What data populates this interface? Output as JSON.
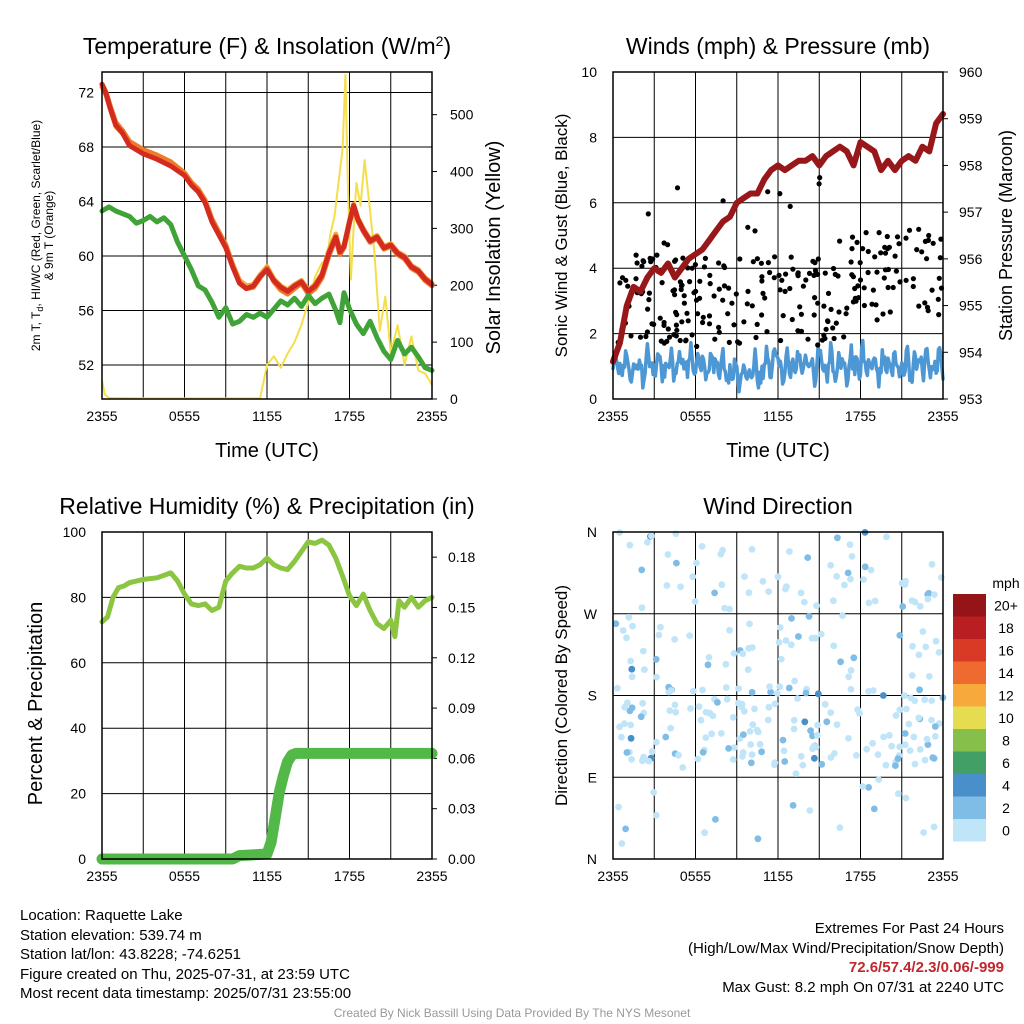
{
  "palette": {
    "temp": "#d42b20",
    "heat_index": "#f3a63a",
    "wind_chill": "#3f82c5",
    "temp_9m": "#ee7a2a",
    "dewpoint": "#3fa337",
    "solar": "#f5de4b",
    "gust": "#000000",
    "sonic_wind": "#4d98d4",
    "pressure": "#98171b",
    "rh": "#8bc542",
    "precip": "#52b848"
  },
  "chart_data": [
    {
      "id": "temp",
      "type": "line",
      "title": "Temperature (F) & Insolation (W/m²)",
      "xlabel": "Time (UTC)",
      "ylabel": "2m T, Td, HI/WC (Red, Green, Scarlet/Blue) & 9m T (Orange)",
      "y2label": "Solar Insolation (Yellow)",
      "x_ticks": [
        "2355",
        "0555",
        "1155",
        "1755",
        "2355"
      ],
      "xlim": [
        0,
        24
      ],
      "ylim": [
        49.5,
        73.5
      ],
      "y_ticks": [
        52,
        56,
        60,
        64,
        68,
        72
      ],
      "y2lim": [
        0,
        575
      ],
      "y2_ticks": [
        0,
        100,
        200,
        300,
        400,
        500
      ],
      "grid": true,
      "series": [
        {
          "key": "solar",
          "axis": "y2",
          "x": [
            0,
            0.2,
            0.5,
            3,
            8,
            11.5,
            12.0,
            12.5,
            13.0,
            13.5,
            14.0,
            14.5,
            15.0,
            15.5,
            16.0,
            16.3,
            16.6,
            16.9,
            17.2,
            17.5,
            17.7,
            17.9,
            18.1,
            18.3,
            18.5,
            18.8,
            19.1,
            19.5,
            19.8,
            20.2,
            20.6,
            21.0,
            21.5,
            22.0,
            22.5,
            23.0,
            23.5,
            24.0
          ],
          "y": [
            32,
            8,
            2,
            1,
            1,
            1,
            60,
            75,
            55,
            80,
            100,
            130,
            170,
            215,
            240,
            230,
            290,
            320,
            380,
            440,
            570,
            360,
            210,
            300,
            380,
            340,
            420,
            330,
            260,
            120,
            180,
            80,
            130,
            60,
            110,
            50,
            45,
            25
          ]
        },
        {
          "key": "heat_index",
          "axis": "y",
          "x": [
            0,
            0.3,
            0.6,
            1.0,
            1.5,
            2.0,
            3.0,
            4.0,
            5.0,
            6.0,
            6.5,
            7.0,
            7.5,
            8.0,
            9.0,
            9.5,
            10.0,
            10.5,
            11.0,
            11.5,
            12.0,
            12.5,
            13.0,
            13.5,
            14.0,
            14.5,
            15.0,
            15.5,
            16.0,
            16.5,
            17.0,
            17.3,
            17.6,
            18.0,
            18.3,
            18.6,
            19.0,
            19.5,
            20.0,
            20.5,
            21.0,
            21.5,
            22.0,
            22.5,
            23.0,
            23.5,
            24.0
          ],
          "y": [
            72.4,
            71.8,
            70.8,
            69.5,
            69.0,
            68.2,
            67.6,
            67.2,
            66.8,
            66.0,
            65.3,
            64.8,
            64.0,
            62.6,
            60.8,
            59.4,
            58.2,
            57.8,
            57.9,
            58.6,
            59.2,
            58.3,
            57.8,
            57.5,
            57.9,
            58.2,
            57.5,
            57.9,
            58.7,
            60.4,
            61.6,
            60.4,
            60.8,
            62.6,
            63.8,
            62.8,
            62.0,
            61.2,
            61.5,
            60.7,
            60.9,
            60.3,
            60.0,
            59.3,
            59.0,
            58.4,
            58.0
          ]
        },
        {
          "key": "temp_9m",
          "axis": "y",
          "x": [
            0,
            0.3,
            0.6,
            1.0,
            1.5,
            2.0,
            3.0,
            4.0,
            5.0,
            6.0,
            6.5,
            7.0,
            7.5,
            8.0,
            9.0,
            9.5,
            10.0,
            10.5,
            11.0,
            11.5,
            12.0,
            12.5,
            13.0,
            13.5,
            14.0,
            14.5,
            15.0,
            15.5,
            16.0,
            16.5,
            17.0,
            17.3,
            17.6,
            18.0,
            18.3,
            18.6,
            19.0,
            19.5,
            20.0,
            20.5,
            21.0,
            21.5,
            22.0,
            22.5,
            23.0,
            23.5,
            24.0
          ],
          "y": [
            72.6,
            72.0,
            71.0,
            69.8,
            69.2,
            68.4,
            67.8,
            67.4,
            66.9,
            66.1,
            65.4,
            64.9,
            64.1,
            62.7,
            60.8,
            59.3,
            58.0,
            57.6,
            57.7,
            58.4,
            59.1,
            58.1,
            57.5,
            57.2,
            57.6,
            58.0,
            57.2,
            57.6,
            58.4,
            60.0,
            61.3,
            60.1,
            60.6,
            62.4,
            63.6,
            62.6,
            61.8,
            61.0,
            61.3,
            60.5,
            60.7,
            60.1,
            59.8,
            59.1,
            58.8,
            58.2,
            57.8
          ]
        },
        {
          "key": "temp",
          "axis": "y",
          "x": [
            0,
            0.3,
            0.6,
            1.0,
            1.5,
            2.0,
            3.0,
            4.0,
            5.0,
            6.0,
            6.5,
            7.0,
            7.5,
            8.0,
            9.0,
            9.5,
            10.0,
            10.5,
            11.0,
            11.5,
            12.0,
            12.5,
            13.0,
            13.5,
            14.0,
            14.5,
            15.0,
            15.5,
            16.0,
            16.5,
            17.0,
            17.3,
            17.6,
            18.0,
            18.3,
            18.6,
            19.0,
            19.5,
            20.0,
            20.5,
            21.0,
            21.5,
            22.0,
            22.5,
            23.0,
            23.5,
            24.0
          ],
          "y": [
            72.6,
            71.9,
            70.8,
            69.6,
            69.0,
            68.1,
            67.5,
            67.1,
            66.6,
            65.9,
            65.2,
            64.7,
            63.9,
            62.5,
            60.6,
            59.2,
            58.0,
            57.6,
            57.8,
            58.5,
            59.0,
            58.2,
            57.7,
            57.4,
            57.8,
            58.1,
            57.4,
            57.8,
            58.6,
            60.2,
            61.4,
            60.3,
            60.7,
            62.5,
            63.7,
            62.7,
            61.9,
            61.1,
            61.4,
            60.6,
            60.8,
            60.2,
            59.9,
            59.2,
            58.9,
            58.3,
            57.9
          ]
        },
        {
          "key": "dewpoint",
          "axis": "y",
          "x": [
            0,
            0.5,
            1.0,
            1.5,
            2.0,
            2.5,
            3.0,
            3.5,
            4.0,
            4.5,
            5.0,
            5.5,
            6.0,
            6.5,
            7.0,
            7.5,
            8.0,
            8.5,
            9.0,
            9.5,
            10.0,
            10.5,
            11.0,
            11.5,
            12.0,
            12.5,
            13.0,
            13.5,
            14.0,
            14.5,
            15.0,
            15.5,
            16.0,
            16.5,
            17.0,
            17.3,
            17.6,
            18.0,
            18.5,
            19.0,
            19.5,
            20.0,
            20.5,
            21.0,
            21.5,
            22.0,
            22.5,
            23.0,
            23.5,
            24.0
          ],
          "y": [
            63.3,
            63.6,
            63.3,
            63.1,
            62.9,
            62.4,
            62.6,
            62.9,
            62.5,
            62.8,
            62.3,
            61.0,
            60.0,
            59.0,
            57.8,
            57.5,
            56.6,
            55.5,
            56.2,
            55.0,
            55.2,
            55.7,
            55.5,
            55.8,
            55.5,
            56.1,
            56.7,
            56.4,
            56.9,
            56.3,
            57.1,
            56.5,
            56.9,
            57.2,
            56.0,
            55.1,
            57.3,
            56.1,
            55.0,
            54.3,
            55.2,
            54.0,
            53.0,
            52.4,
            53.8,
            52.8,
            53.3,
            52.6,
            51.8,
            51.6
          ]
        }
      ]
    },
    {
      "id": "wind",
      "type": "line",
      "title": "Winds (mph) & Pressure (mb)",
      "xlabel": "Time (UTC)",
      "ylabel": "Sonic Wind & Gust (Blue, Black)",
      "y2label": "Station Pressure (Maroon)",
      "x_ticks": [
        "2355",
        "0555",
        "1155",
        "1755",
        "2355"
      ],
      "xlim": [
        0,
        24
      ],
      "ylim": [
        0,
        10
      ],
      "y_ticks": [
        0,
        2,
        4,
        6,
        8,
        10
      ],
      "y2lim": [
        953,
        960
      ],
      "y2_ticks": [
        953,
        954,
        955,
        956,
        957,
        958,
        959,
        960
      ],
      "grid": true,
      "series": [
        {
          "key": "pressure",
          "axis": "y2",
          "x": [
            0,
            0.5,
            1.0,
            1.5,
            2.0,
            2.5,
            3.0,
            3.5,
            4.0,
            4.5,
            5.0,
            5.5,
            6.0,
            6.5,
            7.0,
            7.5,
            8.0,
            8.5,
            9.0,
            9.5,
            10.0,
            10.5,
            11.0,
            11.5,
            12.0,
            12.5,
            13.0,
            13.5,
            14.0,
            14.5,
            15.0,
            15.5,
            16.0,
            16.5,
            17.0,
            17.5,
            18.0,
            18.5,
            19.0,
            19.5,
            20.0,
            20.5,
            21.0,
            21.5,
            22.0,
            22.5,
            23.0,
            23.5,
            24.0
          ],
          "y": [
            953.8,
            954.2,
            955.0,
            955.4,
            955.3,
            955.6,
            955.8,
            955.7,
            955.9,
            955.6,
            955.8,
            956.0,
            956.1,
            956.2,
            956.4,
            956.6,
            956.8,
            956.9,
            957.2,
            957.3,
            957.4,
            957.4,
            957.7,
            957.9,
            958.0,
            957.9,
            958.0,
            958.1,
            958.1,
            958.2,
            958.0,
            958.2,
            958.3,
            958.4,
            958.3,
            958.0,
            958.5,
            958.4,
            958.3,
            957.9,
            958.1,
            957.9,
            958.1,
            958.2,
            958.1,
            958.4,
            958.3,
            958.9,
            959.1
          ]
        },
        {
          "key": "sonic_wind",
          "axis": "y",
          "x": [],
          "y": []
        }
      ],
      "gust_points": {
        "x": [],
        "y": []
      }
    },
    {
      "id": "rh",
      "type": "line",
      "title": "Relative Humidity (%) & Precipitation (in)",
      "xlabel": "",
      "ylabel": "Percent & Precipitation",
      "x_ticks": [
        "2355",
        "0555",
        "1155",
        "1755",
        "2355"
      ],
      "xlim": [
        0,
        24
      ],
      "ylim": [
        0,
        100
      ],
      "y_ticks": [
        0,
        20,
        40,
        60,
        80,
        100
      ],
      "y2lim": [
        0,
        0.195
      ],
      "y2_ticks": [
        "0.00",
        "0.03",
        "0.06",
        "0.09",
        "0.12",
        "0.15",
        "0.18"
      ],
      "grid": true,
      "series": [
        {
          "key": "rh",
          "axis": "y",
          "x": [
            0,
            0.4,
            0.8,
            1.2,
            1.6,
            2.0,
            3.0,
            4.0,
            5.0,
            5.5,
            6.0,
            6.5,
            7.0,
            7.5,
            8.0,
            8.5,
            9.0,
            9.5,
            10.0,
            10.5,
            11.0,
            11.5,
            12.0,
            12.5,
            13.0,
            13.5,
            14.0,
            14.5,
            15.0,
            15.5,
            16.0,
            16.5,
            17.0,
            17.5,
            18.0,
            18.5,
            19.0,
            19.5,
            20.0,
            20.5,
            21.0,
            21.3,
            21.6,
            22.0,
            22.5,
            23.0,
            23.5,
            24.0
          ],
          "y": [
            72.5,
            74,
            80,
            83,
            83.5,
            84.5,
            85.5,
            86,
            87.5,
            85,
            81,
            78,
            77.5,
            78,
            76,
            77,
            85,
            87.5,
            89.5,
            89,
            89,
            90,
            92,
            90,
            89,
            88.5,
            91,
            94,
            97,
            96.5,
            97.5,
            96,
            92,
            86.5,
            80.5,
            77.5,
            81,
            76,
            72,
            70.5,
            73,
            68,
            79,
            77,
            80,
            77,
            79,
            80
          ]
        },
        {
          "key": "precip",
          "axis": "y2",
          "x": [
            0,
            9.5,
            10.0,
            12.0,
            12.3,
            12.6,
            12.9,
            13.2,
            13.5,
            13.8,
            14.1,
            24.0
          ],
          "y": [
            0,
            0,
            0.002,
            0.003,
            0.01,
            0.025,
            0.04,
            0.05,
            0.058,
            0.062,
            0.063,
            0.063
          ]
        }
      ]
    },
    {
      "id": "direction",
      "type": "scatter",
      "title": "Wind Direction",
      "ylabel": "Direction (Colored By Speed)",
      "x_ticks": [
        "2355",
        "0555",
        "1155",
        "1755",
        "2355"
      ],
      "xlim": [
        0,
        24
      ],
      "ylim": [
        0,
        360
      ],
      "y_ticks": [
        {
          "v": 0,
          "l": "N"
        },
        {
          "v": 90,
          "l": "E"
        },
        {
          "v": 180,
          "l": "S"
        },
        {
          "v": 270,
          "l": "W"
        },
        {
          "v": 360,
          "l": "N"
        }
      ],
      "legend_unit": "mph",
      "legend_labels": [
        "0",
        "2",
        "4",
        "6",
        "8",
        "10",
        "12",
        "14",
        "16",
        "18",
        "20+"
      ],
      "legend_colors": [
        "#c1e5f8",
        "#7fbde6",
        "#4990cb",
        "#42a066",
        "#86bf4a",
        "#e6dc4f",
        "#f7a93c",
        "#ef6a2e",
        "#d93a26",
        "#b81e22",
        "#951417"
      ],
      "points": {
        "x": [],
        "y": [],
        "speed": []
      }
    }
  ],
  "info": {
    "location": "Location: Raquette Lake",
    "elevation": "Station elevation: 539.74 m",
    "latlon": "Station lat/lon: 43.8228; -74.6251",
    "created": "Figure created on Thu, 2025-07-31, at 23:59 UTC",
    "recent": "Most recent data timestamp: 2025/07/31 23:55:00",
    "extremes_title": "Extremes For Past 24 Hours",
    "extremes_sub": "(High/Low/Max Wind/Precipitation/Snow Depth)",
    "extremes_values": "72.6/57.4/2.3/0.06/-999",
    "max_gust": "Max Gust: 8.2 mph On 07/31 at 2240 UTC"
  },
  "credit": "Created By Nick Bassill Using Data Provided By The NYS Mesonet"
}
